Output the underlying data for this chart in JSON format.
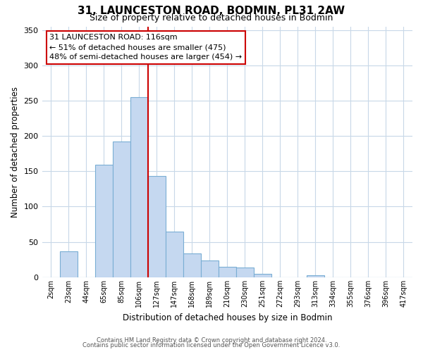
{
  "title1": "31, LAUNCESTON ROAD, BODMIN, PL31 2AW",
  "title2": "Size of property relative to detached houses in Bodmin",
  "xlabel": "Distribution of detached houses by size in Bodmin",
  "ylabel": "Number of detached properties",
  "bar_labels": [
    "2sqm",
    "23sqm",
    "44sqm",
    "65sqm",
    "85sqm",
    "106sqm",
    "127sqm",
    "147sqm",
    "168sqm",
    "189sqm",
    "210sqm",
    "230sqm",
    "251sqm",
    "272sqm",
    "293sqm",
    "313sqm",
    "334sqm",
    "355sqm",
    "376sqm",
    "396sqm",
    "417sqm"
  ],
  "bar_heights": [
    0,
    37,
    0,
    159,
    192,
    255,
    143,
    65,
    34,
    24,
    15,
    14,
    5,
    0,
    0,
    3,
    0,
    0,
    0,
    0,
    0
  ],
  "bar_color": "#c5d8f0",
  "bar_edge_color": "#7aaed4",
  "vline_index": 5.5,
  "annotation_line1": "31 LAUNCESTON ROAD: 116sqm",
  "annotation_line2": "← 51% of detached houses are smaller (475)",
  "annotation_line3": "48% of semi-detached houses are larger (454) →",
  "vline_color": "#cc0000",
  "annotation_box_edge": "#cc0000",
  "ylim": [
    0,
    355
  ],
  "yticks": [
    0,
    50,
    100,
    150,
    200,
    250,
    300,
    350
  ],
  "footer1": "Contains HM Land Registry data © Crown copyright and database right 2024.",
  "footer2": "Contains public sector information licensed under the Open Government Licence v3.0.",
  "background_color": "#ffffff",
  "grid_color": "#c8d8e8"
}
